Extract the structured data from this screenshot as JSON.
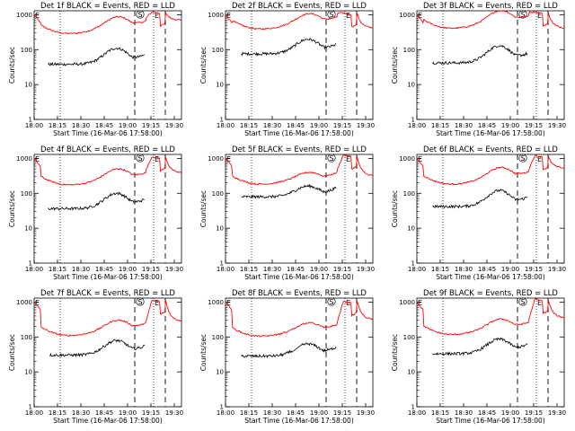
{
  "figure": {
    "xlabel": "Start Time (16-Mar-06 17:58:00)",
    "ylabel": "Counts/sec"
  },
  "chart_data": [
    {
      "type": "line",
      "title": "Det 1f BLACK = Events, RED = LLD",
      "xticks": [
        "18:00",
        "18:15",
        "18:30",
        "18:45",
        "19:00",
        "19:15",
        "19:30"
      ],
      "yticks": [
        "1",
        "10",
        "100",
        "1000"
      ],
      "yscale": "log",
      "ylim": [
        1,
        1300
      ],
      "markers": {
        "E": "E",
        "S": "S"
      },
      "series": [
        {
          "name": "BLACK",
          "color": "#000000"
        },
        {
          "name": "RED",
          "color": "#ff0000"
        }
      ]
    },
    {
      "type": "line",
      "title": "Det 2f BLACK = Events, RED = LLD",
      "xticks": [
        "18:00",
        "18:15",
        "18:30",
        "18:45",
        "19:00",
        "19:15",
        "19:30"
      ],
      "yticks": [
        "1",
        "10",
        "100",
        "1000"
      ],
      "yscale": "log",
      "ylim": [
        1,
        1300
      ],
      "markers": {
        "E": "E",
        "S": "S"
      },
      "series": [
        {
          "name": "BLACK",
          "color": "#000000"
        },
        {
          "name": "RED",
          "color": "#ff0000"
        }
      ]
    },
    {
      "type": "line",
      "title": "Det 3f BLACK = Events, RED = LLD",
      "xticks": [
        "18:00",
        "18:15",
        "18:30",
        "18:45",
        "19:00",
        "19:15",
        "19:30"
      ],
      "yticks": [
        "1",
        "10",
        "100",
        "1000"
      ],
      "yscale": "log",
      "ylim": [
        1,
        1300
      ],
      "markers": {
        "E": "E",
        "S": "S"
      },
      "series": [
        {
          "name": "BLACK",
          "color": "#000000"
        },
        {
          "name": "RED",
          "color": "#ff0000"
        }
      ]
    },
    {
      "type": "line",
      "title": "Det 4f BLACK = Events, RED = LLD",
      "xticks": [
        "18:00",
        "18:15",
        "18:30",
        "18:45",
        "19:00",
        "19:15",
        "19:30"
      ],
      "yticks": [
        "1",
        "10",
        "100",
        "1000"
      ],
      "yscale": "log",
      "ylim": [
        1,
        1300
      ],
      "markers": {
        "E": "E",
        "S": "S"
      },
      "series": [
        {
          "name": "BLACK",
          "color": "#000000"
        },
        {
          "name": "RED",
          "color": "#ff0000"
        }
      ]
    },
    {
      "type": "line",
      "title": "Det 5f BLACK = Events, RED = LLD",
      "xticks": [
        "18:00",
        "18:15",
        "18:30",
        "18:45",
        "19:00",
        "19:15",
        "19:30"
      ],
      "yticks": [
        "1",
        "10",
        "100",
        "1000"
      ],
      "yscale": "log",
      "ylim": [
        1,
        1300
      ],
      "markers": {
        "E": "E",
        "S": "S"
      },
      "series": [
        {
          "name": "BLACK",
          "color": "#000000"
        },
        {
          "name": "RED",
          "color": "#ff0000"
        }
      ]
    },
    {
      "type": "line",
      "title": "Det 6f BLACK = Events, RED = LLD",
      "xticks": [
        "18:00",
        "18:15",
        "18:30",
        "18:45",
        "19:00",
        "19:15",
        "19:30"
      ],
      "yticks": [
        "1",
        "10",
        "100",
        "1000"
      ],
      "yscale": "log",
      "ylim": [
        1,
        1300
      ],
      "markers": {
        "E": "E",
        "S": "S"
      },
      "series": [
        {
          "name": "BLACK",
          "color": "#000000"
        },
        {
          "name": "RED",
          "color": "#ff0000"
        }
      ]
    },
    {
      "type": "line",
      "title": "Det 7f BLACK = Events, RED = LLD",
      "xticks": [
        "18:00",
        "18:15",
        "18:30",
        "18:45",
        "19:00",
        "19:15",
        "19:30"
      ],
      "yticks": [
        "1",
        "10",
        "100",
        "1000"
      ],
      "yscale": "log",
      "ylim": [
        1,
        1300
      ],
      "markers": {
        "E": "E",
        "S": "S"
      },
      "series": [
        {
          "name": "BLACK",
          "color": "#000000"
        },
        {
          "name": "RED",
          "color": "#ff0000"
        }
      ]
    },
    {
      "type": "line",
      "title": "Det 8f BLACK = Events, RED = LLD",
      "xticks": [
        "18:00",
        "18:15",
        "18:30",
        "18:45",
        "19:00",
        "19:15",
        "19:30"
      ],
      "yticks": [
        "1",
        "10",
        "100",
        "1000"
      ],
      "yscale": "log",
      "ylim": [
        1,
        1300
      ],
      "markers": {
        "E": "E",
        "S": "S"
      },
      "series": [
        {
          "name": "BLACK",
          "color": "#000000"
        },
        {
          "name": "RED",
          "color": "#ff0000"
        }
      ]
    },
    {
      "type": "line",
      "title": "Det 9f BLACK = Events, RED = LLD",
      "xticks": [
        "18:00",
        "18:15",
        "18:30",
        "18:45",
        "19:00",
        "19:15",
        "19:30"
      ],
      "yticks": [
        "1",
        "10",
        "100",
        "1000"
      ],
      "yscale": "log",
      "ylim": [
        1,
        1300
      ],
      "markers": {
        "E": "E",
        "S": "S"
      },
      "series": [
        {
          "name": "BLACK",
          "color": "#000000"
        },
        {
          "name": "RED",
          "color": "#ff0000"
        }
      ]
    }
  ]
}
